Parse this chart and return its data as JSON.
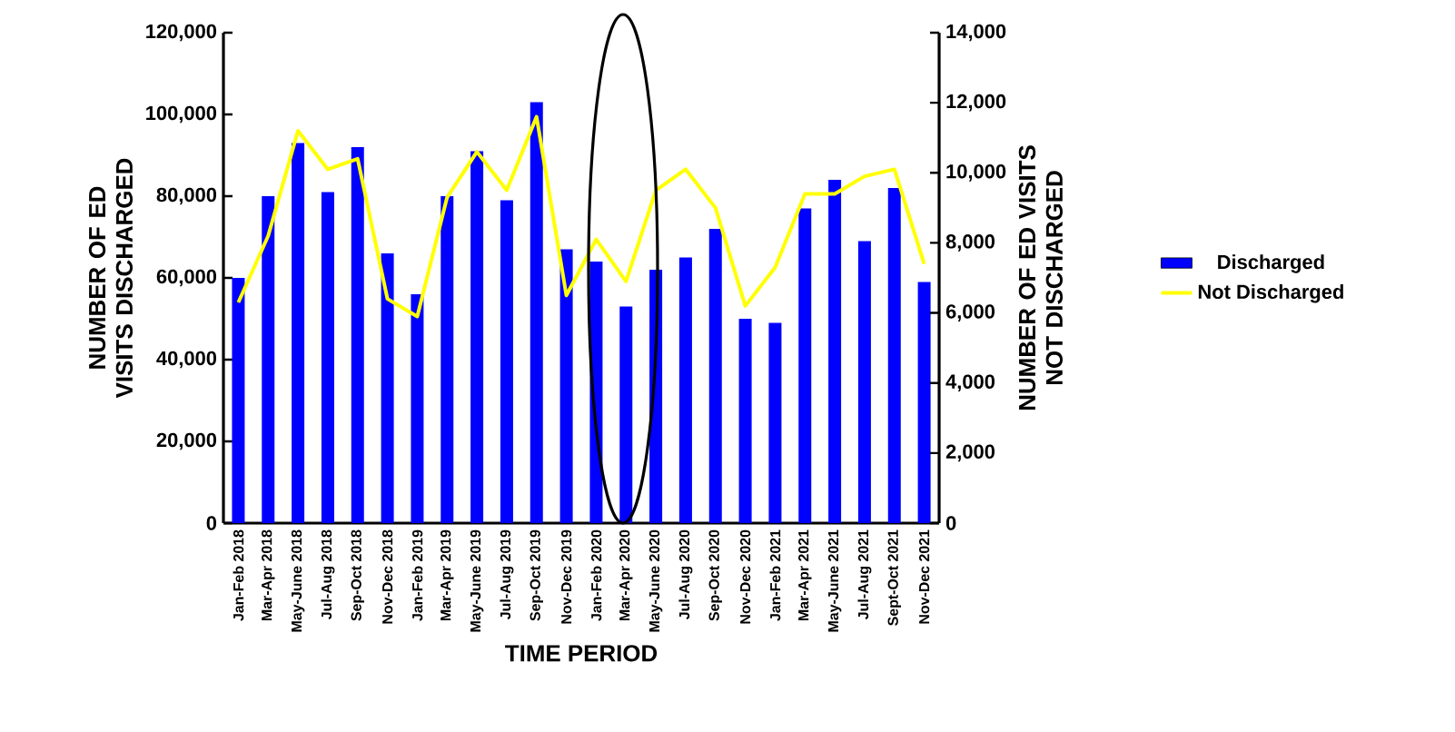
{
  "chart_data": {
    "type": "bar",
    "categories": [
      "Jan-Feb 2018",
      "Mar-Apr 2018",
      "May-June 2018",
      "Jul-Aug 2018",
      "Sep-Oct 2018",
      "Nov-Dec 2018",
      "Jan-Feb 2019",
      "Mar-Apr 2019",
      "May-June 2019",
      "Jul-Aug 2019",
      "Sep-Oct 2019",
      "Nov-Dec 2019",
      "Jan-Feb 2020",
      "Mar-Apr 2020",
      "May-June 2020",
      "Jul-Aug 2020",
      "Sep-Oct 2020",
      "Nov-Dec 2020",
      "Jan-Feb 2021",
      "Mar-Apr 2021",
      "May-June 2021",
      "Jul-Aug 2021",
      "Sept-Oct 2021",
      "Nov-Dec 2021"
    ],
    "series": [
      {
        "name": "Discharged",
        "color": "#0000ff",
        "values": [
          60000,
          80000,
          93000,
          81000,
          92000,
          66000,
          56000,
          80000,
          91000,
          79000,
          103000,
          67000,
          64000,
          53000,
          62000,
          65000,
          72000,
          50000,
          49000,
          77000,
          84000,
          69000,
          82000,
          59000
        ]
      },
      {
        "name": "Not Discharged",
        "type": "line",
        "axis": "y2",
        "color": "#ffff00",
        "values": [
          6300,
          8200,
          11200,
          10100,
          10400,
          6400,
          5900,
          9300,
          10600,
          9500,
          11600,
          6500,
          8100,
          6900,
          9500,
          10100,
          9000,
          6200,
          7300,
          9400,
          9400,
          9900,
          10100,
          7400
        ]
      }
    ],
    "xlabel": "TIME PERIOD",
    "ylabel": "NUMBER OF ED VISITS DISCHARGED",
    "y2label": "NUMBER OF ED VISITS NOT DISCHARGED",
    "ylim": [
      0,
      120000
    ],
    "yticks": [
      0,
      {
        "value": 20000,
        "label": "20,000"
      },
      {
        "value": 40000,
        "label": "40,000"
      },
      {
        "value": 60000,
        "label": "60,000"
      },
      {
        "value": 80000,
        "label": "80,000"
      },
      {
        "value": 100000,
        "label": "100,000"
      },
      {
        "value": 120000,
        "label": "120,000"
      }
    ],
    "y2lim": [
      0,
      14000
    ],
    "y2ticks": [
      0,
      {
        "value": 2000,
        "label": "2,000"
      },
      {
        "value": 4000,
        "label": "4,000"
      },
      {
        "value": 6000,
        "label": "6,000"
      },
      {
        "value": 8000,
        "label": "8,000"
      },
      {
        "value": 10000,
        "label": "10,000"
      },
      {
        "value": 12000,
        "label": "12,000"
      },
      {
        "value": 14000,
        "label": "14,000"
      }
    ],
    "legend": "right"
  }
}
